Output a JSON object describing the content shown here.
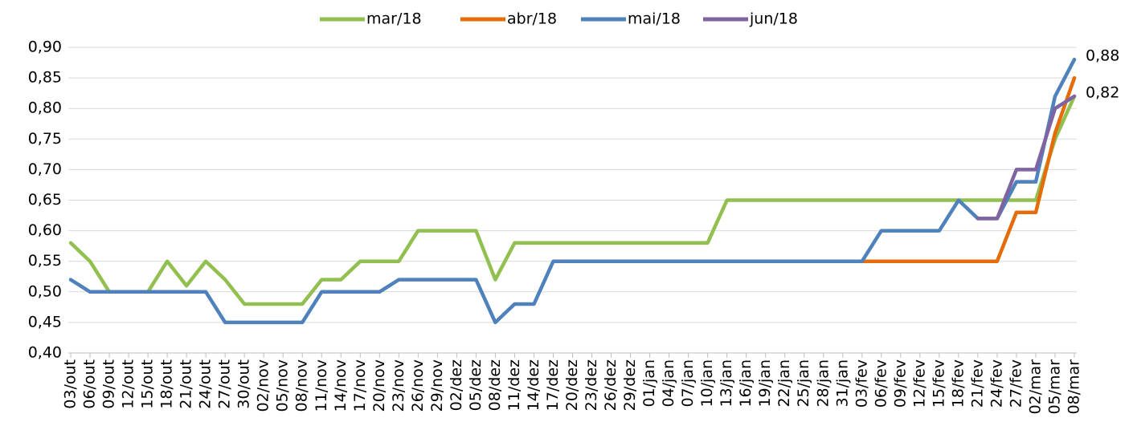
{
  "chart_data": {
    "type": "line",
    "categories": [
      "03/out",
      "06/out",
      "09/out",
      "12/out",
      "15/out",
      "18/out",
      "21/out",
      "24/out",
      "27/out",
      "30/out",
      "02/nov",
      "05/nov",
      "08/nov",
      "11/nov",
      "14/nov",
      "17/nov",
      "20/nov",
      "23/nov",
      "26/nov",
      "29/nov",
      "02/dez",
      "05/dez",
      "08/dez",
      "11/dez",
      "14/dez",
      "17/dez",
      "20/dez",
      "23/dez",
      "26/dez",
      "29/dez",
      "01/jan",
      "04/jan",
      "07/jan",
      "10/jan",
      "13/jan",
      "16/jan",
      "19/jan",
      "22/jan",
      "25/jan",
      "28/jan",
      "31/jan",
      "03/fev",
      "06/fev",
      "09/fev",
      "12/fev",
      "15/fev",
      "18/fev",
      "21/fev",
      "24/fev",
      "27/fev",
      "02/mar",
      "05/mar",
      "08/mar"
    ],
    "series": [
      {
        "name": "mar/18",
        "color": "#92c050",
        "values": [
          0.58,
          0.55,
          0.5,
          0.5,
          0.5,
          0.55,
          0.51,
          0.55,
          0.52,
          0.48,
          0.48,
          0.48,
          0.48,
          0.52,
          0.52,
          0.55,
          0.55,
          0.55,
          0.6,
          0.6,
          0.6,
          0.6,
          0.52,
          0.58,
          0.58,
          0.58,
          0.58,
          0.58,
          0.58,
          0.58,
          0.58,
          0.58,
          0.58,
          0.58,
          0.65,
          0.65,
          0.65,
          0.65,
          0.65,
          0.65,
          0.65,
          0.65,
          0.65,
          0.65,
          0.65,
          0.65,
          0.65,
          0.65,
          0.65,
          0.65,
          0.65,
          0.75,
          0.82
        ]
      },
      {
        "name": "abr/18",
        "color": "#e46c0a",
        "values": [
          null,
          null,
          null,
          null,
          null,
          null,
          null,
          null,
          null,
          null,
          null,
          null,
          null,
          null,
          null,
          null,
          null,
          null,
          null,
          null,
          null,
          null,
          null,
          null,
          null,
          null,
          null,
          null,
          null,
          null,
          null,
          null,
          null,
          null,
          null,
          null,
          null,
          null,
          null,
          null,
          null,
          0.55,
          0.55,
          0.55,
          0.55,
          0.55,
          0.55,
          0.55,
          0.55,
          0.63,
          0.63,
          0.76,
          0.85
        ]
      },
      {
        "name": "mai/18",
        "color": "#4f81bd",
        "values": [
          0.52,
          0.5,
          0.5,
          0.5,
          0.5,
          0.5,
          0.5,
          0.5,
          0.45,
          0.45,
          0.45,
          0.45,
          0.45,
          0.5,
          0.5,
          0.5,
          0.5,
          0.52,
          0.52,
          0.52,
          0.52,
          0.52,
          0.45,
          0.48,
          0.48,
          0.55,
          0.55,
          0.55,
          0.55,
          0.55,
          0.55,
          0.55,
          0.55,
          0.55,
          0.55,
          0.55,
          0.55,
          0.55,
          0.55,
          0.55,
          0.55,
          0.55,
          0.6,
          0.6,
          0.6,
          0.6,
          0.65,
          0.62,
          0.62,
          0.68,
          0.68,
          0.82,
          0.88
        ],
        "value_labels": [
          null,
          null,
          null,
          null,
          null,
          null,
          null,
          null,
          null,
          null,
          null,
          null,
          null,
          null,
          null,
          null,
          null,
          null,
          null,
          null,
          null,
          null,
          null,
          null,
          null,
          null,
          null,
          null,
          null,
          null,
          null,
          null,
          null,
          null,
          null,
          null,
          null,
          null,
          null,
          null,
          null,
          null,
          null,
          null,
          null,
          null,
          null,
          null,
          null,
          null,
          null,
          null,
          "0,88"
        ]
      },
      {
        "name": "jun/18",
        "color": "#8064a2",
        "values": [
          null,
          null,
          null,
          null,
          null,
          null,
          null,
          null,
          null,
          null,
          null,
          null,
          null,
          null,
          null,
          null,
          null,
          null,
          null,
          null,
          null,
          null,
          null,
          null,
          null,
          null,
          null,
          null,
          null,
          null,
          null,
          null,
          null,
          null,
          null,
          null,
          null,
          null,
          null,
          null,
          null,
          null,
          null,
          null,
          null,
          null,
          null,
          0.62,
          0.62,
          0.7,
          0.7,
          0.8,
          0.82
        ],
        "value_labels": [
          null,
          null,
          null,
          null,
          null,
          null,
          null,
          null,
          null,
          null,
          null,
          null,
          null,
          null,
          null,
          null,
          null,
          null,
          null,
          null,
          null,
          null,
          null,
          null,
          null,
          null,
          null,
          null,
          null,
          null,
          null,
          null,
          null,
          null,
          null,
          null,
          null,
          null,
          null,
          null,
          null,
          null,
          null,
          null,
          null,
          null,
          null,
          null,
          null,
          null,
          null,
          null,
          "0,82"
        ]
      }
    ],
    "ylim": [
      0.4,
      0.9
    ],
    "yticks": [
      {
        "value": 0.4,
        "label": "0,40"
      },
      {
        "value": 0.45,
        "label": "0,45"
      },
      {
        "value": 0.5,
        "label": "0,50"
      },
      {
        "value": 0.55,
        "label": "0,55"
      },
      {
        "value": 0.6,
        "label": "0,60"
      },
      {
        "value": 0.65,
        "label": "0,65"
      },
      {
        "value": 0.7,
        "label": "0,70"
      },
      {
        "value": 0.75,
        "label": "0,75"
      },
      {
        "value": 0.8,
        "label": "0,80"
      },
      {
        "value": 0.85,
        "label": "0,85"
      },
      {
        "value": 0.9,
        "label": "0,90"
      }
    ],
    "grid": true,
    "legend": "top"
  }
}
